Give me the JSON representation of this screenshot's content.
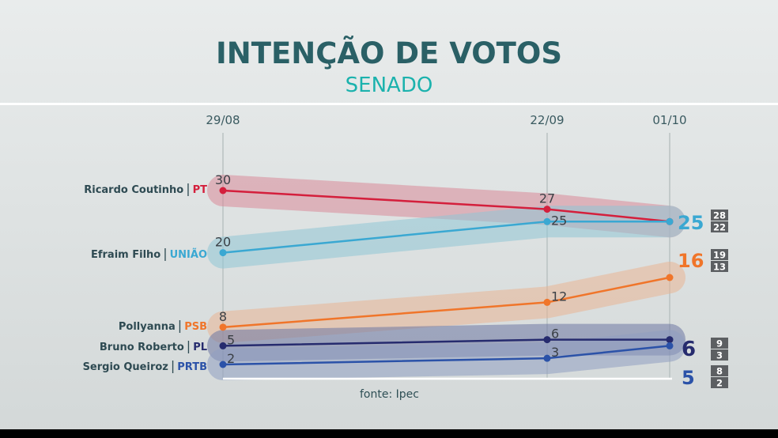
{
  "title": "INTENÇÃO DE VOTOS",
  "subtitle": "SENADO",
  "source": "fonte: Ipec",
  "chart_data": {
    "type": "line",
    "x": [
      "29/08",
      "22/09",
      "01/10"
    ],
    "series": [
      {
        "name": "Ricardo Coutinho",
        "party": "PT",
        "values": [
          30,
          27,
          25
        ],
        "color": "#d41f3c",
        "band": "#d98a99",
        "label_color": "#6fa9c7",
        "range_high": 28,
        "range_low": 22
      },
      {
        "name": "Efraim Filho",
        "party": "UNIÃO",
        "values": [
          20,
          25,
          25
        ],
        "color": "#3aa8d2",
        "band": "#8fc6d6",
        "label_color": "#3aa8d2",
        "range_high": 28,
        "range_low": 22
      },
      {
        "name": "Pollyanna",
        "party": "PSB",
        "values": [
          8,
          12,
          16
        ],
        "color": "#f0752a",
        "band": "#e9b494",
        "label_color": "#f0752a",
        "range_high": 19,
        "range_low": 13
      },
      {
        "name": "Bruno Roberto",
        "party": "PL",
        "values": [
          5,
          6,
          6
        ],
        "color": "#262b6e",
        "band": "#6d77a3",
        "label_color": "#262b6e",
        "range_high": 9,
        "range_low": 3
      },
      {
        "name": "Sergio Queiroz",
        "party": "PRTB",
        "values": [
          2,
          3,
          5
        ],
        "color": "#2b52a8",
        "band": "#8f9fc1",
        "label_color": "#2b52a8",
        "range_high": 8,
        "range_low": 2
      }
    ],
    "final_labels": [
      {
        "text": "25",
        "color": "#3aa8d2"
      },
      {
        "text": "16",
        "color": "#f0752a"
      },
      {
        "text": "6",
        "color": "#262b6e"
      },
      {
        "text": "5",
        "color": "#2b52a8"
      }
    ],
    "margin_boxes": [
      {
        "high": "28",
        "low": "22"
      },
      {
        "high": "19",
        "low": "13"
      },
      {
        "high": "9",
        "low": "3"
      },
      {
        "high": "8",
        "low": "2"
      }
    ],
    "party_colors": {
      "PT": "#d41f3c",
      "UNIÃO": "#3aa8d2",
      "PSB": "#f0752a",
      "PL": "#262b6e",
      "PRTB": "#2b52a8"
    }
  }
}
